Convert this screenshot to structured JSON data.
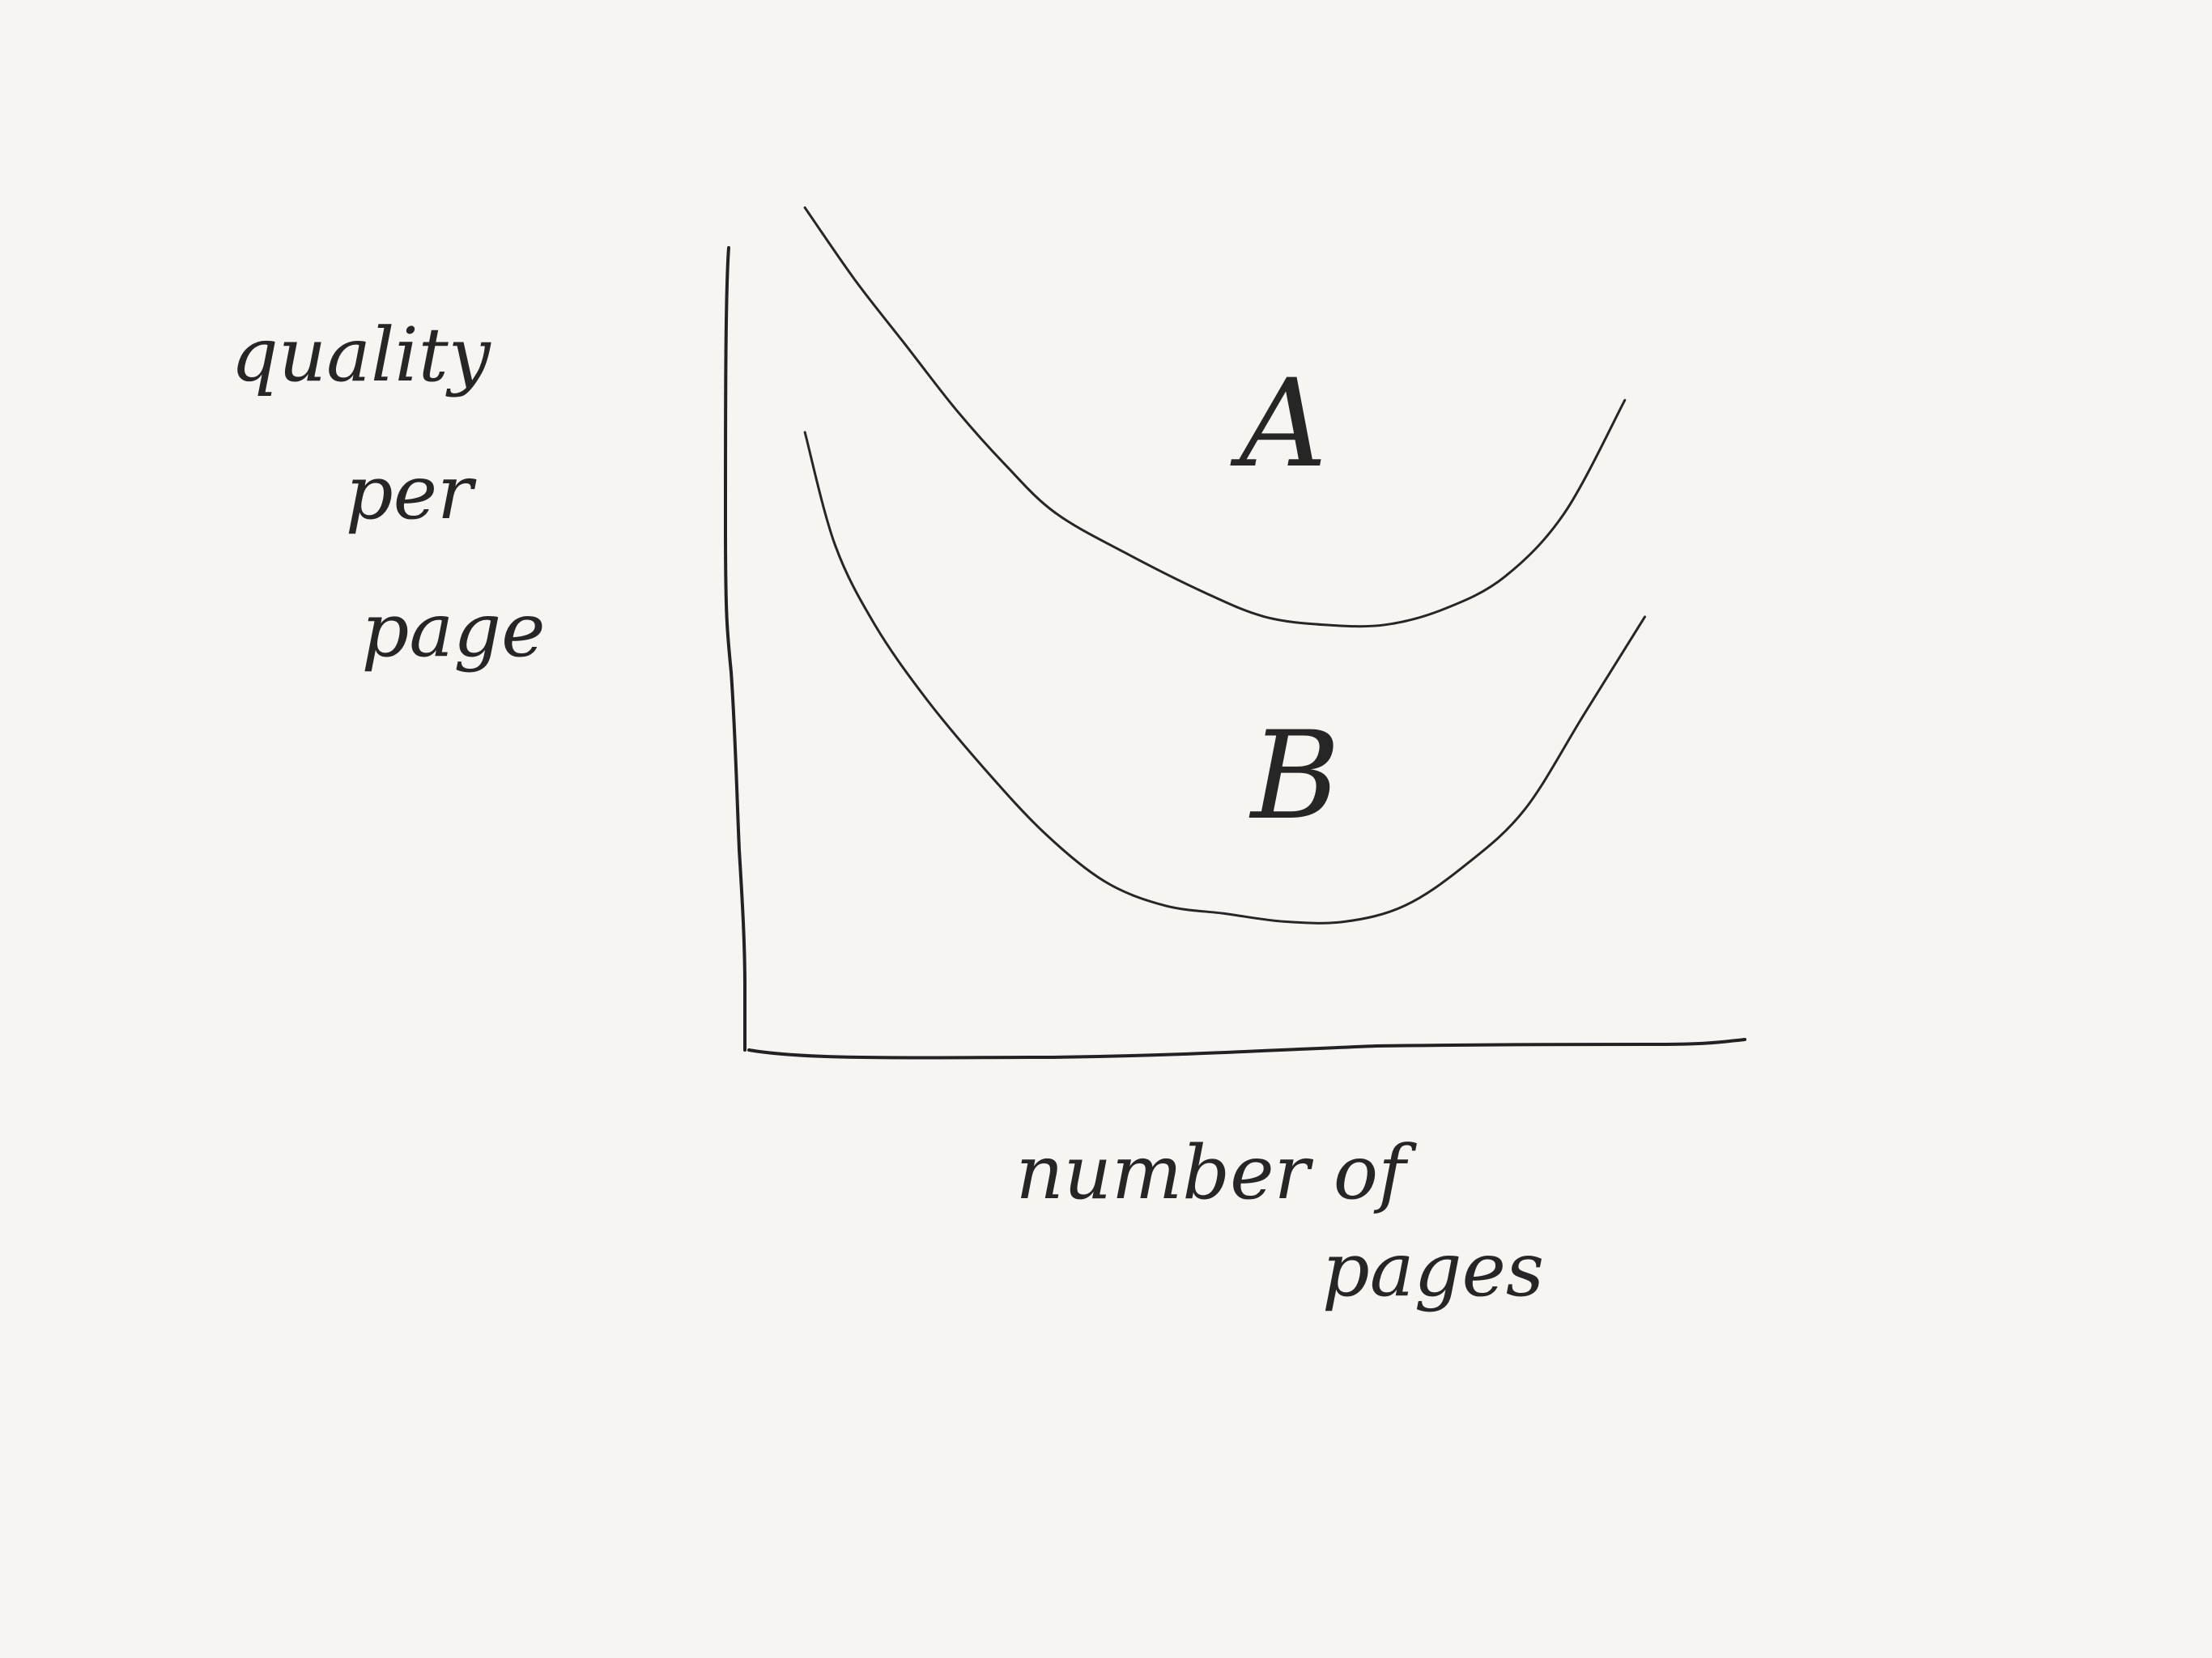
{
  "chart_data": {
    "type": "line",
    "title": "",
    "xlabel": "number of pages",
    "ylabel": "quality per page",
    "xlim": [
      0,
      100
    ],
    "ylim": [
      0,
      100
    ],
    "grid": false,
    "legend": "none",
    "ticks": "none",
    "series": [
      {
        "name": "A",
        "x": [
          6,
          11,
          16,
          21,
          26,
          31,
          38,
          46,
          52,
          58,
          64,
          70,
          76,
          82,
          88
        ],
        "y": [
          105,
          96,
          88,
          80,
          73,
          67,
          62,
          57,
          54,
          53,
          53,
          55,
          59,
          67,
          81
        ]
      },
      {
        "name": "B",
        "x": [
          6,
          9,
          13,
          18,
          24,
          30,
          36,
          42,
          48,
          54,
          60,
          66,
          72,
          78,
          84,
          90
        ],
        "y": [
          77,
          63,
          53,
          44,
          35,
          27,
          21,
          18,
          17,
          16,
          16,
          18,
          23,
          30,
          42,
          54
        ]
      }
    ],
    "color": "#262626"
  }
}
